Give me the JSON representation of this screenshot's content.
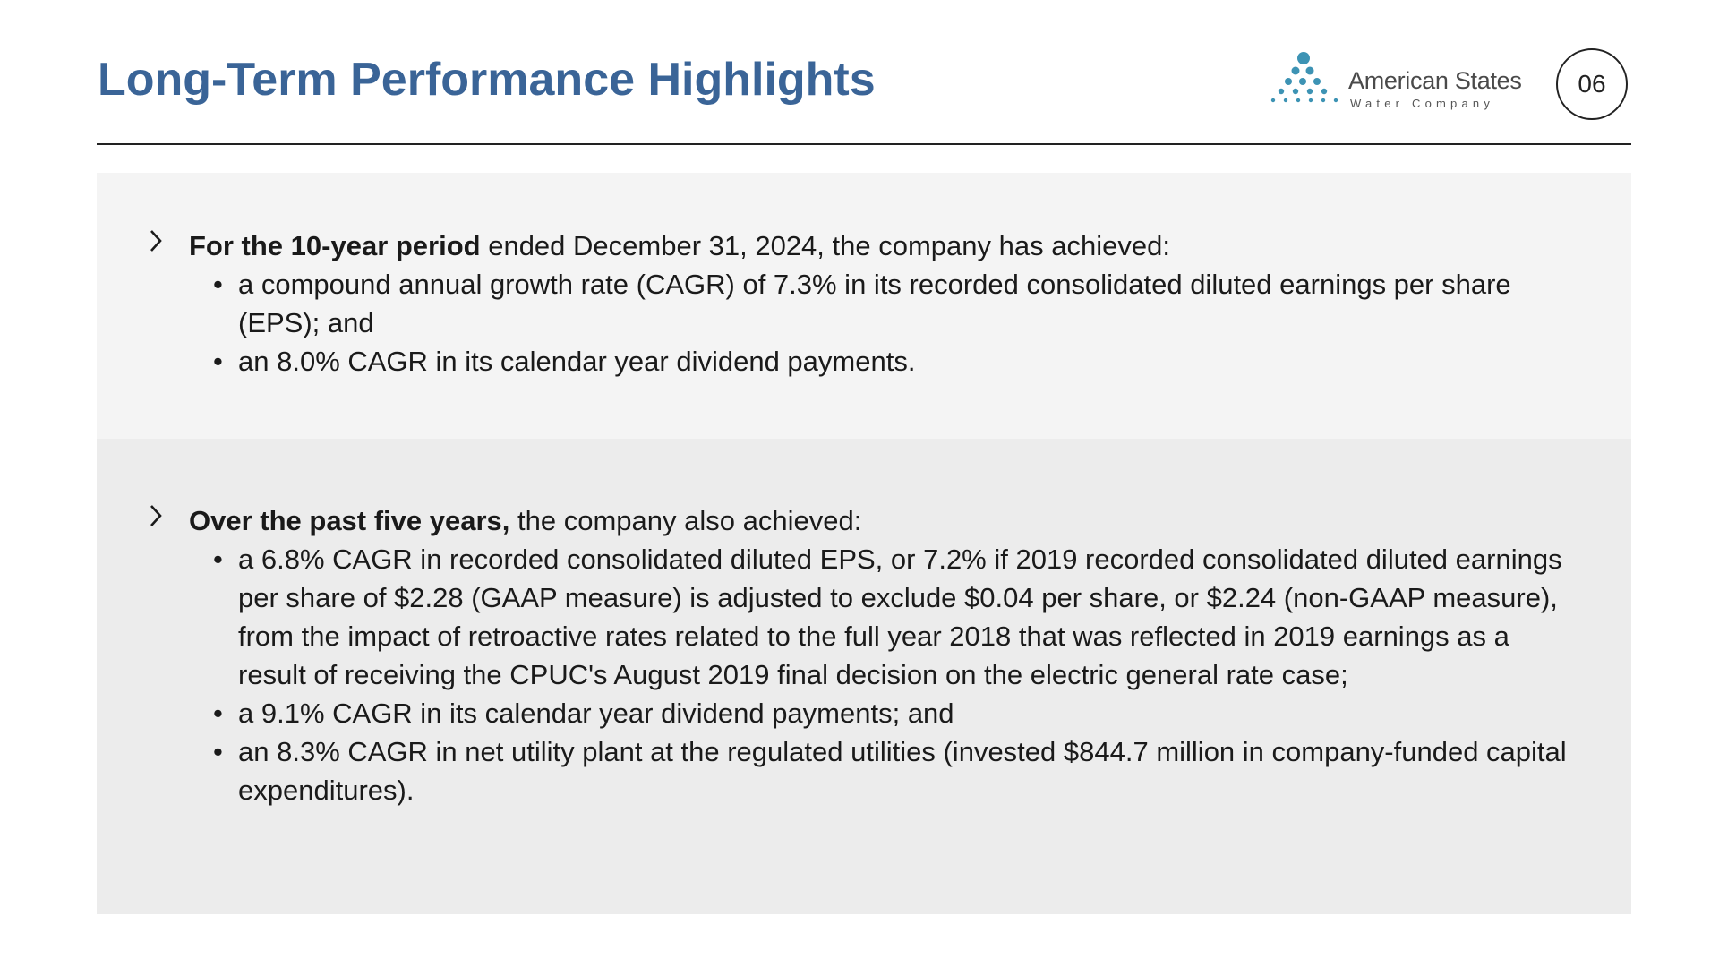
{
  "slide": {
    "title": "Long-Term Performance Highlights",
    "page_number": "06"
  },
  "logo": {
    "name": "American States",
    "subtitle": "Water Company",
    "color": "#3d93b4"
  },
  "sections": [
    {
      "lead_bold": "For the 10-year period",
      "lead_rest": " ended December 31, 2024, the company has achieved:",
      "bullets": [
        "a compound annual growth rate (CAGR) of 7.3% in its recorded consolidated diluted earnings per share (EPS); and",
        "an 8.0% CAGR in its calendar year dividend payments."
      ]
    },
    {
      "lead_bold": "Over the past five years,",
      "lead_rest": " the company also achieved:",
      "bullets": [
        "a 6.8% CAGR in recorded consolidated diluted EPS, or 7.2% if 2019 recorded consolidated diluted earnings per share of $2.28 (GAAP measure) is adjusted to exclude $0.04 per share, or $2.24 (non-GAAP measure), from the impact of retroactive rates related to the full year 2018 that was reflected in 2019 earnings as a result of receiving the CPUC's August 2019 final decision on the electric general rate case;",
        "a 9.1% CAGR in its calendar year dividend payments; and",
        "an 8.3% CAGR in net utility plant at the regulated utilities (invested $844.7 million in company-funded capital expenditures)."
      ]
    }
  ],
  "colors": {
    "title": "#3a6497",
    "panel_light": "#f4f4f4",
    "panel_dark": "#ececec",
    "text": "#1a1a1a"
  }
}
